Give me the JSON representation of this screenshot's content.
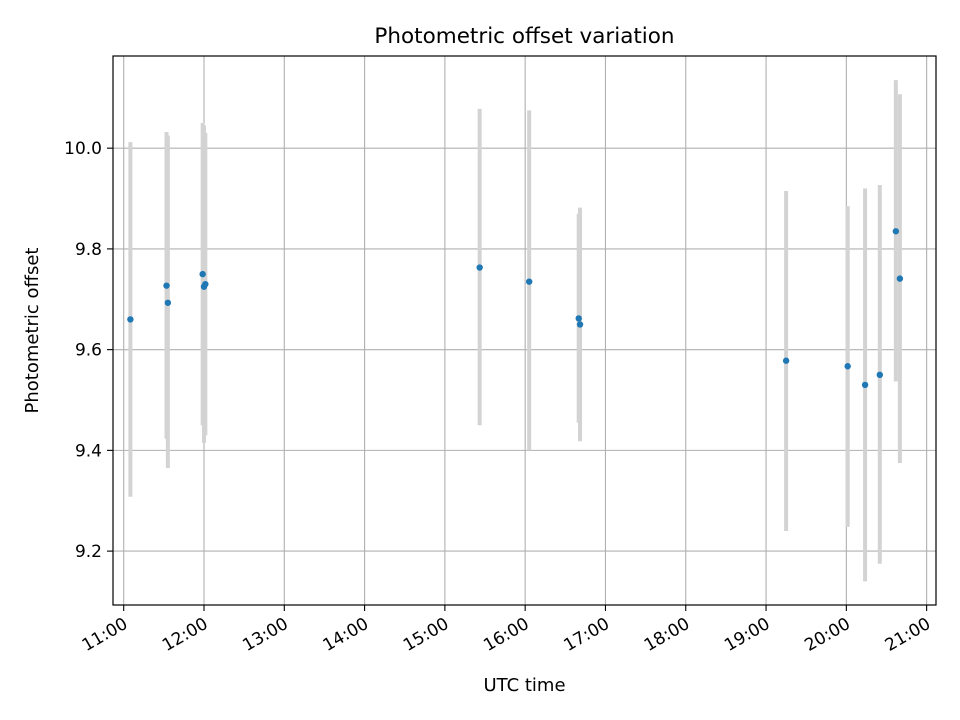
{
  "chart_data": {
    "type": "scatter",
    "title": "Photometric offset variation",
    "xlabel": "UTC time",
    "ylabel": "Photometric offset",
    "x_axis_kind": "time",
    "xlim": [
      "10:52",
      "21:07"
    ],
    "ylim": [
      9.093,
      10.183
    ],
    "grid": true,
    "x_ticks": [
      "11:00",
      "12:00",
      "13:00",
      "14:00",
      "15:00",
      "16:00",
      "17:00",
      "18:00",
      "19:00",
      "20:00",
      "21:00"
    ],
    "y_ticks": [
      "9.2",
      "9.4",
      "9.6",
      "9.8",
      "10.0"
    ],
    "point_color": "#1f77b4",
    "errorbar_color": "#d3d3d3",
    "points": [
      {
        "x": "11:05",
        "y": 9.66,
        "y_low": 9.308,
        "y_high": 10.012
      },
      {
        "x": "11:32",
        "y": 9.727,
        "y_low": 9.423,
        "y_high": 10.032
      },
      {
        "x": "11:33",
        "y": 9.693,
        "y_low": 9.365,
        "y_high": 10.025
      },
      {
        "x": "11:59",
        "y": 9.75,
        "y_low": 9.45,
        "y_high": 10.05
      },
      {
        "x": "12:00",
        "y": 9.725,
        "y_low": 9.415,
        "y_high": 10.045
      },
      {
        "x": "12:01",
        "y": 9.73,
        "y_low": 9.43,
        "y_high": 10.03
      },
      {
        "x": "15:26",
        "y": 9.763,
        "y_low": 9.45,
        "y_high": 10.078
      },
      {
        "x": "16:03",
        "y": 9.735,
        "y_low": 9.4,
        "y_high": 10.075
      },
      {
        "x": "16:40",
        "y": 9.662,
        "y_low": 9.455,
        "y_high": 9.87
      },
      {
        "x": "16:41",
        "y": 9.65,
        "y_low": 9.418,
        "y_high": 9.882
      },
      {
        "x": "19:15",
        "y": 9.578,
        "y_low": 9.24,
        "y_high": 9.915
      },
      {
        "x": "20:01",
        "y": 9.567,
        "y_low": 9.248,
        "y_high": 9.885
      },
      {
        "x": "20:14",
        "y": 9.53,
        "y_low": 9.14,
        "y_high": 9.92
      },
      {
        "x": "20:25",
        "y": 9.55,
        "y_low": 9.175,
        "y_high": 9.927
      },
      {
        "x": "20:37",
        "y": 9.835,
        "y_low": 9.537,
        "y_high": 10.135
      },
      {
        "x": "20:40",
        "y": 9.741,
        "y_low": 9.375,
        "y_high": 10.107
      }
    ]
  }
}
